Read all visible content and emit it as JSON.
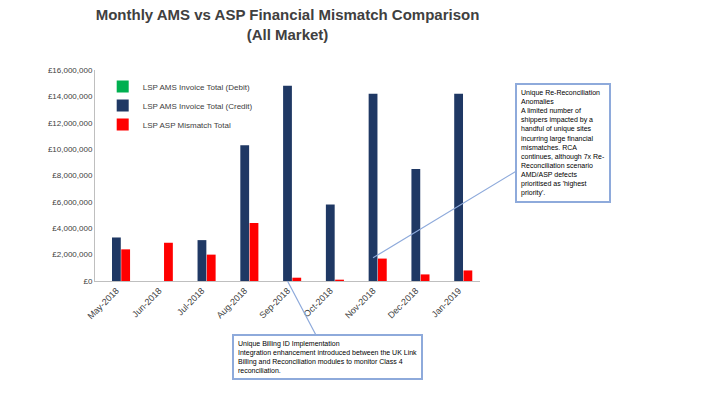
{
  "chart_data": {
    "type": "bar",
    "title": [
      "Monthly AMS vs ASP Financial Mismatch Comparison",
      "(All Market)"
    ],
    "categories": [
      "May-2018",
      "Jun-2018",
      "Jul-2018",
      "Aug-2018",
      "Sep-2018",
      "Oct-2018",
      "Nov-2018",
      "Dec-2018",
      "Jan-2019"
    ],
    "series": [
      {
        "name": "LSP AMS Invoice Total (Debit)",
        "color": "#00b050",
        "values": [
          0,
          0,
          0,
          0,
          0,
          0,
          0,
          0,
          0
        ]
      },
      {
        "name": "LSP AMS Invoice Total (Credit)",
        "color": "#1f3864",
        "values": [
          3300000,
          0,
          3100000,
          10300000,
          14800000,
          5800000,
          14200000,
          8500000,
          14200000
        ]
      },
      {
        "name": "LSP ASP Mismatch Total",
        "color": "#ff0000",
        "values": [
          2400000,
          2900000,
          2000000,
          4400000,
          250000,
          100000,
          1700000,
          500000,
          800000
        ]
      }
    ],
    "ylim": [
      0,
      16000000
    ],
    "yticks": [
      {
        "value": 0,
        "label": "£0"
      },
      {
        "value": 2000000,
        "label": "£2,000,000"
      },
      {
        "value": 4000000,
        "label": "£4,000,000"
      },
      {
        "value": 6000000,
        "label": "£6,000,000"
      },
      {
        "value": 8000000,
        "label": "£8,000,000"
      },
      {
        "value": 10000000,
        "label": "£10,000,000"
      },
      {
        "value": 12000000,
        "label": "£12,000,000"
      },
      {
        "value": 14000000,
        "label": "£14,000,000"
      },
      {
        "value": 16000000,
        "label": "£16,000,000"
      }
    ],
    "grid": false,
    "legend": "top-left",
    "annotations": [
      {
        "category": "Nov-2018",
        "lines": [
          "Unique Re-Reconciliation",
          "Anomalies",
          "A limited number of",
          "shippers impacted by a",
          "handful of unique sites",
          "incurring large financial",
          "mismatches. RCA",
          "continues, although 7x Re-",
          "Reconciliation scenario",
          "AMD/ASP defects",
          "prioritised as 'highest",
          "priority'."
        ]
      },
      {
        "category": "Sep-2018",
        "lines": [
          "Unique Billing ID Implementation",
          "Integration enhancement introduced between the UK Link",
          "Billing and Reconciliation modules to monitor Class 4",
          "reconciliation."
        ]
      }
    ]
  }
}
